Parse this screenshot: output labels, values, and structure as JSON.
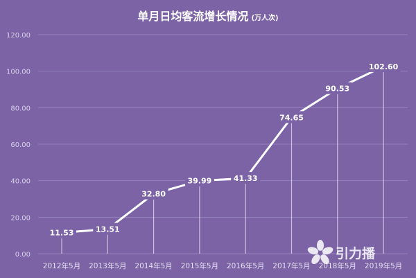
{
  "chart_data": {
    "type": "line",
    "title": "单月日均客流增长情况",
    "title_unit": "(万人次)",
    "categories": [
      "2012年5月",
      "2013年5月",
      "2014年5月",
      "2015年5月",
      "2016年5月",
      "2017年5月",
      "2018年5月",
      "2019年5月"
    ],
    "values": [
      11.53,
      13.51,
      32.8,
      39.99,
      41.33,
      74.65,
      90.53,
      102.6
    ],
    "value_labels": [
      "11.53",
      "13.51",
      "32.80",
      "39.99",
      "41.33",
      "74.65",
      "90.53",
      "102.60"
    ],
    "yticks": [
      "0.00",
      "20.00",
      "40.00",
      "60.00",
      "80.00",
      "100.00",
      "120.00"
    ],
    "ylim": [
      0,
      120
    ],
    "grid": true,
    "legend": "none"
  },
  "watermark": {
    "text": "引力播"
  },
  "colors": {
    "background": "#7b63a6",
    "line": "#ffffff",
    "grid": "#9582ba"
  }
}
